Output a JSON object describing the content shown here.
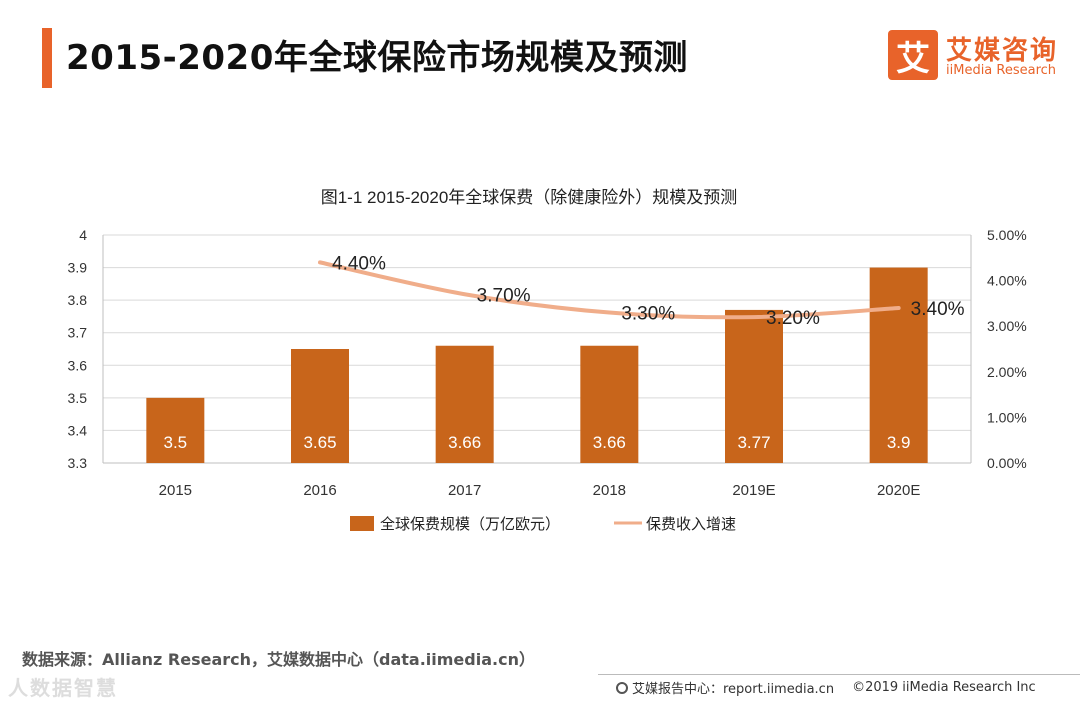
{
  "header": {
    "title": "2015-2020年全球保险市场规模及预测",
    "logo_mark": "艾",
    "logo_cn": "艾媒咨询",
    "logo_en": "iiMedia Research"
  },
  "chart_data": {
    "type": "bar",
    "title": "图1-1 2015-2020年全球保费（除健康险外）规模及预测",
    "categories": [
      "2015",
      "2016",
      "2017",
      "2018",
      "2019E",
      "2020E"
    ],
    "series": [
      {
        "name": "全球保费规模（万亿欧元）",
        "type": "bar",
        "axis": "left",
        "color": "#c8651b",
        "values": [
          3.5,
          3.65,
          3.66,
          3.66,
          3.77,
          3.9
        ],
        "labels": [
          "3.5",
          "3.65",
          "3.66",
          "3.66",
          "3.77",
          "3.9"
        ]
      },
      {
        "name": "保费收入增速",
        "type": "line",
        "axis": "right",
        "color": "#f0ad8a",
        "values": [
          null,
          4.4,
          3.7,
          3.3,
          3.2,
          3.4
        ],
        "labels": [
          null,
          "4.40%",
          "3.70%",
          "3.30%",
          "3.20%",
          "3.40%"
        ]
      }
    ],
    "y_left": {
      "min": 3.3,
      "max": 4.0,
      "ticks": [
        "3.3",
        "3.4",
        "3.5",
        "3.6",
        "3.7",
        "3.8",
        "3.9",
        "4"
      ]
    },
    "y_right": {
      "min": 0,
      "max": 5,
      "ticks": [
        "0.00%",
        "1.00%",
        "2.00%",
        "3.00%",
        "4.00%",
        "5.00%"
      ]
    },
    "grid": true,
    "legend_position": "bottom"
  },
  "source": "数据来源：Allianz Research，艾媒数据中心（data.iimedia.cn）",
  "watermark": "人数据智慧",
  "footer": {
    "report": "艾媒报告中心：report.iimedia.cn",
    "copyright": "©2019  iiMedia Research  Inc"
  }
}
